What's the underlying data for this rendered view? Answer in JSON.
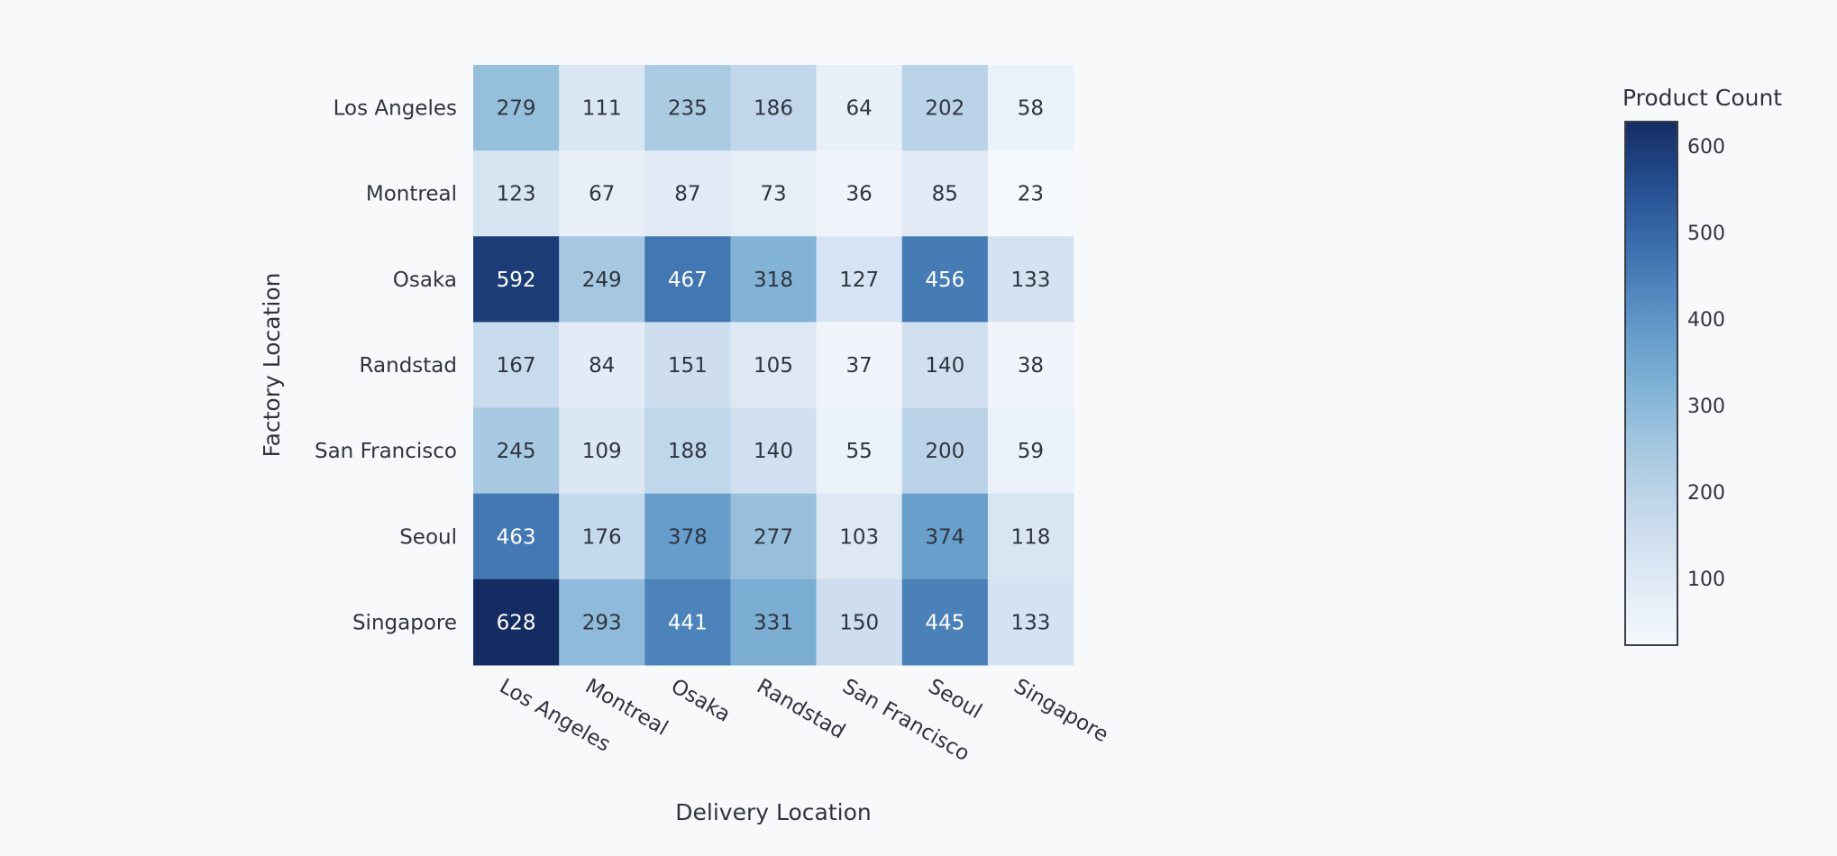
{
  "chart_data": {
    "type": "heatmap",
    "xlabel": "Delivery Location",
    "ylabel": "Factory Location",
    "x_categories": [
      "Los Angeles",
      "Montreal",
      "Osaka",
      "Randstad",
      "San Francisco",
      "Seoul",
      "Singapore"
    ],
    "y_categories": [
      "Los Angeles",
      "Montreal",
      "Osaka",
      "Randstad",
      "San Francisco",
      "Seoul",
      "Singapore"
    ],
    "values": [
      [
        279,
        111,
        235,
        186,
        64,
        202,
        58
      ],
      [
        123,
        67,
        87,
        73,
        36,
        85,
        23
      ],
      [
        592,
        249,
        467,
        318,
        127,
        456,
        133
      ],
      [
        167,
        84,
        151,
        105,
        37,
        140,
        38
      ],
      [
        245,
        109,
        188,
        140,
        55,
        200,
        59
      ],
      [
        463,
        176,
        378,
        277,
        103,
        374,
        118
      ],
      [
        628,
        293,
        441,
        331,
        150,
        445,
        133
      ]
    ],
    "colorbar": {
      "title": "Product Count",
      "range": [
        23,
        628
      ],
      "ticks": [
        100,
        200,
        300,
        400,
        500,
        600
      ],
      "colorscale": [
        "#f5f8fc",
        "#dfe9f5",
        "#c6d9ec",
        "#a5c8e0",
        "#7eb0d5",
        "#5c95c6",
        "#3e72b0",
        "#254f92",
        "#152c63"
      ]
    },
    "grid": false
  }
}
